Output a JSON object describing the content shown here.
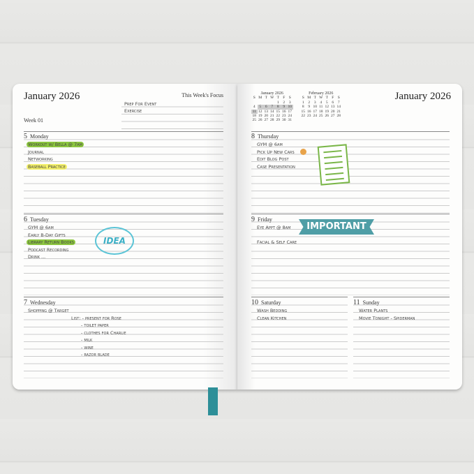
{
  "left_page": {
    "title": "January 2026",
    "focus_label": "This Week's Focus",
    "week": "Week 01",
    "focus_items": [
      "Prep For Event",
      "Exercise"
    ],
    "days": [
      {
        "num": "5",
        "name": "Monday",
        "items": [
          "Workout w/ Bella @ 7am",
          "Journal",
          "Networking",
          "Baseball Practice"
        ]
      },
      {
        "num": "6",
        "name": "Tuesday",
        "items": [
          "GYM @ 6am",
          "Early B-Day Gifts",
          "Library Return Books",
          "Podcast Recording",
          "Drink ..."
        ]
      },
      {
        "num": "7",
        "name": "Wednesday",
        "items": [
          "Shopping @ Target",
          "List: - present for Rose",
          "- toilet paper",
          "- clothes for Charlie",
          "- milk",
          "- wine",
          "- razor blade"
        ]
      }
    ]
  },
  "right_page": {
    "title": "January 2026",
    "mini_calendars": [
      {
        "title": "January 2026",
        "headers": [
          "S",
          "M",
          "T",
          "W",
          "T",
          "F",
          "S"
        ],
        "rows": [
          [
            "",
            "",
            "",
            "",
            "1",
            "2",
            "3"
          ],
          [
            "4",
            "5",
            "6",
            "7",
            "8",
            "9",
            "10"
          ],
          [
            "11",
            "12",
            "13",
            "14",
            "15",
            "16",
            "17"
          ],
          [
            "18",
            "19",
            "20",
            "21",
            "22",
            "23",
            "24"
          ],
          [
            "25",
            "26",
            "27",
            "28",
            "29",
            "30",
            "31"
          ]
        ],
        "highlighted": [
          "5",
          "6",
          "7",
          "8",
          "9",
          "10",
          "11"
        ]
      },
      {
        "title": "February 2026",
        "headers": [
          "S",
          "M",
          "T",
          "W",
          "T",
          "F",
          "S"
        ],
        "rows": [
          [
            "1",
            "2",
            "3",
            "4",
            "5",
            "6",
            "7"
          ],
          [
            "8",
            "9",
            "10",
            "11",
            "12",
            "13",
            "14"
          ],
          [
            "15",
            "16",
            "17",
            "18",
            "19",
            "20",
            "21"
          ],
          [
            "22",
            "23",
            "24",
            "25",
            "26",
            "27",
            "28"
          ]
        ],
        "highlighted": []
      }
    ],
    "days": [
      {
        "num": "8",
        "name": "Thursday",
        "items": [
          "GYM @ 6am",
          "Pick Up New Cars",
          "Edit Blog Post",
          "Case Presentation"
        ]
      },
      {
        "num": "9",
        "name": "Friday",
        "items": [
          "Eye Appt @ 8am",
          "",
          "Facial & Self Care"
        ]
      },
      {
        "num": "10",
        "name": "Saturday",
        "items": [
          "Wash Bedding",
          "Clean Kitchen"
        ]
      },
      {
        "num": "11",
        "name": "Sunday",
        "items": [
          "Water Plants",
          "Movie Tonight - Spiderman"
        ]
      }
    ]
  },
  "stickers": {
    "important": "IMPORTANT",
    "idea": "IDEA"
  },
  "colors": {
    "ribbon": "#2d8f98",
    "highlight_green": "#8cc63f",
    "highlight_yellow": "#f3f06a",
    "sticker_teal": "#4f9ea6"
  }
}
